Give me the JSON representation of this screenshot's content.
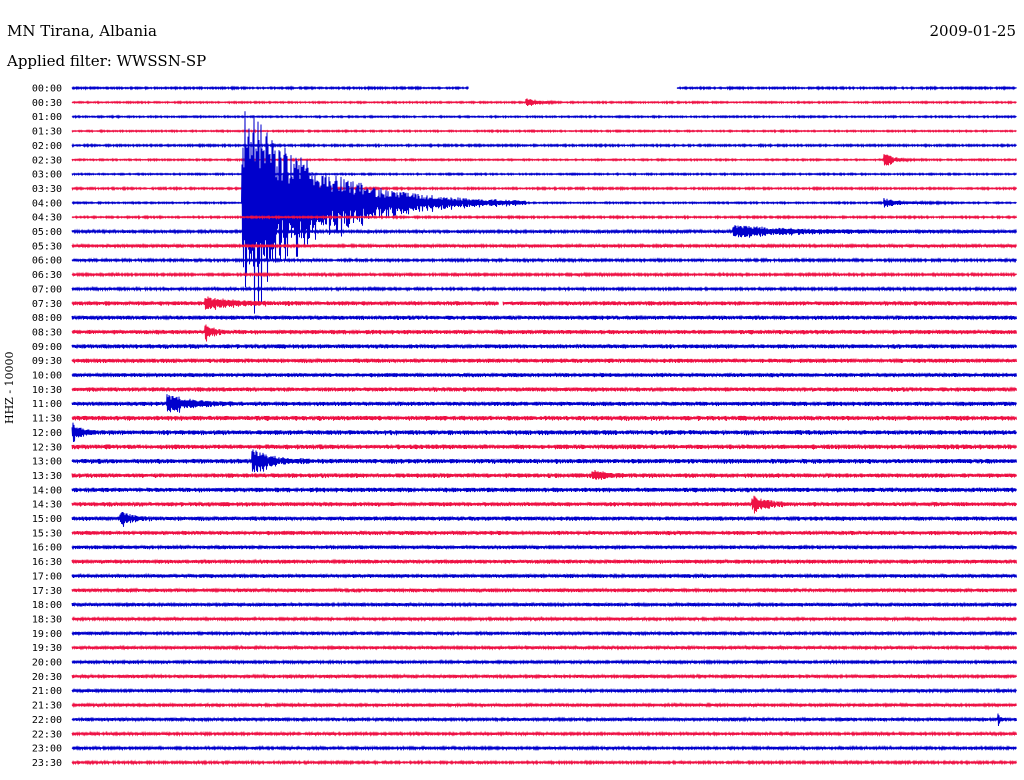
{
  "header": {
    "station": "MN Tirana, Albania",
    "date": "2009-01-25",
    "filter": "Applied filter: WWSSN-SP"
  },
  "chart_data": {
    "type": "line",
    "title": "MN Tirana, Albania",
    "subtitle": "Applied filter: WWSSN-SP",
    "date": "2009-01-25",
    "ylabel": "HHZ - 10000",
    "xlabel": "",
    "grid": false,
    "legend": "none",
    "row_colors": [
      "#0000cc",
      "#ee1144"
    ],
    "rows": [
      "00:00",
      "00:30",
      "01:00",
      "01:30",
      "02:00",
      "02:30",
      "03:00",
      "03:30",
      "04:00",
      "04:30",
      "05:00",
      "05:30",
      "06:00",
      "06:30",
      "07:00",
      "07:30",
      "08:00",
      "08:30",
      "09:00",
      "09:30",
      "10:00",
      "10:30",
      "11:00",
      "11:30",
      "12:00",
      "12:30",
      "13:00",
      "13:30",
      "14:00",
      "14:30",
      "15:00",
      "15:30",
      "16:00",
      "16:30",
      "17:00",
      "17:30",
      "18:00",
      "18:30",
      "19:00",
      "19:30",
      "20:00",
      "20:30",
      "21:00",
      "21:30",
      "22:00",
      "22:30",
      "23:00",
      "23:30"
    ],
    "noise_level": [
      0.6,
      0.5,
      0.5,
      0.5,
      0.6,
      0.5,
      0.5,
      0.6,
      0.5,
      0.6,
      0.9,
      1.0,
      0.8,
      0.8,
      0.8,
      1.4,
      1.4,
      1.4,
      1.4,
      1.4,
      1.3,
      1.4,
      1.4,
      1.6,
      1.6,
      1.6,
      1.6,
      1.5,
      1.5,
      1.4,
      1.4,
      1.3,
      1.2,
      1.3,
      1.2,
      1.2,
      1.1,
      1.0,
      1.0,
      1.0,
      1.0,
      1.0,
      1.0,
      1.0,
      1.0,
      0.9,
      0.9,
      0.8
    ],
    "gaps": [
      {
        "row": "00:00",
        "from": 0.42,
        "to": 0.64
      },
      {
        "row": "07:30",
        "from": 0.452,
        "to": 0.456
      }
    ],
    "events": [
      {
        "row": "00:30",
        "at": 0.48,
        "amplitude": 4,
        "duration": 0.04
      },
      {
        "row": "02:30",
        "at": 0.86,
        "amplitude": 5,
        "duration": 0.04
      },
      {
        "row": "04:00",
        "at": 0.18,
        "amplitude": 70,
        "duration": 0.3
      },
      {
        "row": "04:00",
        "at": 0.86,
        "amplitude": 3,
        "duration": 0.08
      },
      {
        "row": "05:00",
        "at": 0.7,
        "amplitude": 4,
        "duration": 0.3
      },
      {
        "row": "07:30",
        "at": 0.14,
        "amplitude": 4,
        "duration": 0.12
      },
      {
        "row": "08:30",
        "at": 0.14,
        "amplitude": 8,
        "duration": 0.03
      },
      {
        "row": "11:00",
        "at": 0.1,
        "amplitude": 6,
        "duration": 0.1
      },
      {
        "row": "12:00",
        "at": 0.0,
        "amplitude": 6,
        "duration": 0.04
      },
      {
        "row": "13:00",
        "at": 0.19,
        "amplitude": 8,
        "duration": 0.08
      },
      {
        "row": "13:30",
        "at": 0.55,
        "amplitude": 4,
        "duration": 0.05
      },
      {
        "row": "14:30",
        "at": 0.72,
        "amplitude": 6,
        "duration": 0.06
      },
      {
        "row": "15:00",
        "at": 0.05,
        "amplitude": 6,
        "duration": 0.04
      },
      {
        "row": "22:00",
        "at": 0.98,
        "amplitude": 5,
        "duration": 0.01
      }
    ]
  }
}
